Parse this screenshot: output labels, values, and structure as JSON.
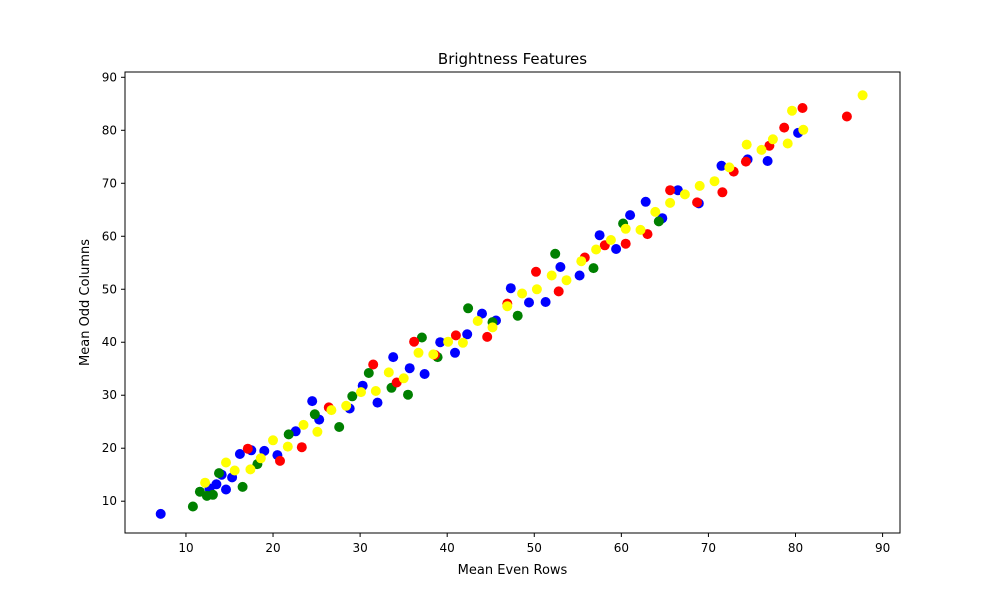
{
  "chart_data": {
    "type": "scatter",
    "title": "Brightness Features",
    "xlabel": "Mean Even Rows",
    "ylabel": "Mean Odd Columns",
    "xlim": [
      3.0,
      92.0
    ],
    "ylim": [
      4.0,
      91.0
    ],
    "xticks": [
      10,
      20,
      30,
      40,
      50,
      60,
      70,
      80,
      90
    ],
    "yticks": [
      10,
      20,
      30,
      40,
      50,
      60,
      70,
      80,
      90
    ],
    "grid": false,
    "legend": "none",
    "series": [
      {
        "color": "#0000ff",
        "points": [
          [
            7.1,
            7.6
          ],
          [
            12.7,
            12.4
          ],
          [
            13.5,
            13.2
          ],
          [
            14.1,
            15.0
          ],
          [
            14.6,
            12.2
          ],
          [
            15.3,
            14.5
          ],
          [
            16.2,
            18.9
          ],
          [
            17.5,
            19.6
          ],
          [
            19.0,
            19.5
          ],
          [
            20.5,
            18.7
          ],
          [
            22.6,
            23.2
          ],
          [
            24.5,
            28.9
          ],
          [
            25.3,
            25.4
          ],
          [
            28.8,
            27.5
          ],
          [
            30.3,
            31.8
          ],
          [
            32.0,
            28.6
          ],
          [
            33.8,
            37.2
          ],
          [
            35.7,
            35.1
          ],
          [
            37.4,
            34.0
          ],
          [
            39.2,
            40.0
          ],
          [
            40.9,
            38.0
          ],
          [
            42.3,
            41.5
          ],
          [
            44.0,
            45.4
          ],
          [
            45.6,
            44.1
          ],
          [
            47.3,
            50.2
          ],
          [
            49.4,
            47.5
          ],
          [
            51.3,
            47.6
          ],
          [
            53.0,
            54.2
          ],
          [
            55.2,
            52.6
          ],
          [
            57.5,
            60.2
          ],
          [
            59.4,
            57.6
          ],
          [
            61.0,
            64.0
          ],
          [
            62.8,
            66.5
          ],
          [
            64.7,
            63.4
          ],
          [
            66.5,
            68.7
          ],
          [
            68.9,
            66.2
          ],
          [
            71.5,
            73.3
          ],
          [
            74.5,
            74.5
          ],
          [
            76.8,
            74.2
          ],
          [
            80.3,
            79.5
          ]
        ]
      },
      {
        "color": "#008000",
        "points": [
          [
            10.8,
            9.0
          ],
          [
            11.6,
            11.8
          ],
          [
            12.4,
            11.0
          ],
          [
            13.1,
            11.2
          ],
          [
            13.8,
            15.3
          ],
          [
            16.5,
            12.7
          ],
          [
            18.2,
            17.0
          ],
          [
            21.8,
            22.6
          ],
          [
            24.8,
            26.4
          ],
          [
            27.6,
            24.0
          ],
          [
            29.1,
            29.8
          ],
          [
            31.0,
            34.2
          ],
          [
            33.6,
            31.4
          ],
          [
            35.5,
            30.1
          ],
          [
            37.1,
            40.9
          ],
          [
            38.9,
            37.2
          ],
          [
            42.4,
            46.4
          ],
          [
            45.2,
            43.8
          ],
          [
            48.1,
            45.0
          ],
          [
            52.4,
            56.7
          ],
          [
            56.8,
            54.0
          ],
          [
            60.2,
            62.4
          ],
          [
            64.3,
            62.8
          ]
        ]
      },
      {
        "color": "#ff0000",
        "points": [
          [
            17.1,
            19.9
          ],
          [
            20.8,
            17.6
          ],
          [
            23.3,
            20.2
          ],
          [
            26.4,
            27.7
          ],
          [
            31.5,
            35.8
          ],
          [
            34.2,
            32.4
          ],
          [
            36.2,
            40.1
          ],
          [
            38.6,
            37.6
          ],
          [
            41.0,
            41.3
          ],
          [
            44.6,
            41.0
          ],
          [
            46.9,
            47.3
          ],
          [
            50.2,
            53.3
          ],
          [
            52.8,
            49.6
          ],
          [
            55.8,
            56.0
          ],
          [
            58.1,
            58.3
          ],
          [
            60.5,
            58.6
          ],
          [
            63.0,
            60.4
          ],
          [
            65.6,
            68.7
          ],
          [
            68.7,
            66.4
          ],
          [
            71.6,
            68.3
          ],
          [
            72.9,
            72.2
          ],
          [
            74.3,
            74.1
          ],
          [
            77.0,
            77.1
          ],
          [
            78.7,
            80.5
          ],
          [
            80.8,
            84.2
          ],
          [
            85.9,
            82.6
          ]
        ]
      },
      {
        "color": "#ffff00",
        "points": [
          [
            12.2,
            13.5
          ],
          [
            14.6,
            17.3
          ],
          [
            15.6,
            15.8
          ],
          [
            17.4,
            16.0
          ],
          [
            18.6,
            18.1
          ],
          [
            20.0,
            21.5
          ],
          [
            21.7,
            20.3
          ],
          [
            23.5,
            24.4
          ],
          [
            25.1,
            23.1
          ],
          [
            26.7,
            27.2
          ],
          [
            28.4,
            28.0
          ],
          [
            30.1,
            30.6
          ],
          [
            31.8,
            30.8
          ],
          [
            33.3,
            34.3
          ],
          [
            35.0,
            33.2
          ],
          [
            36.7,
            38.0
          ],
          [
            38.4,
            37.7
          ],
          [
            40.1,
            40.1
          ],
          [
            41.8,
            39.9
          ],
          [
            43.5,
            44.0
          ],
          [
            45.2,
            42.8
          ],
          [
            46.9,
            46.8
          ],
          [
            48.6,
            49.2
          ],
          [
            50.3,
            50.0
          ],
          [
            52.0,
            52.6
          ],
          [
            53.7,
            51.7
          ],
          [
            55.4,
            55.3
          ],
          [
            57.1,
            57.5
          ],
          [
            58.8,
            59.3
          ],
          [
            60.5,
            61.4
          ],
          [
            62.2,
            61.2
          ],
          [
            63.9,
            64.6
          ],
          [
            65.6,
            66.3
          ],
          [
            67.3,
            67.9
          ],
          [
            69.0,
            69.5
          ],
          [
            70.7,
            70.4
          ],
          [
            72.4,
            73.0
          ],
          [
            74.4,
            77.3
          ],
          [
            76.1,
            76.3
          ],
          [
            77.4,
            78.3
          ],
          [
            79.1,
            77.5
          ],
          [
            79.6,
            83.7
          ],
          [
            80.9,
            80.1
          ],
          [
            87.7,
            86.6
          ]
        ]
      }
    ]
  }
}
